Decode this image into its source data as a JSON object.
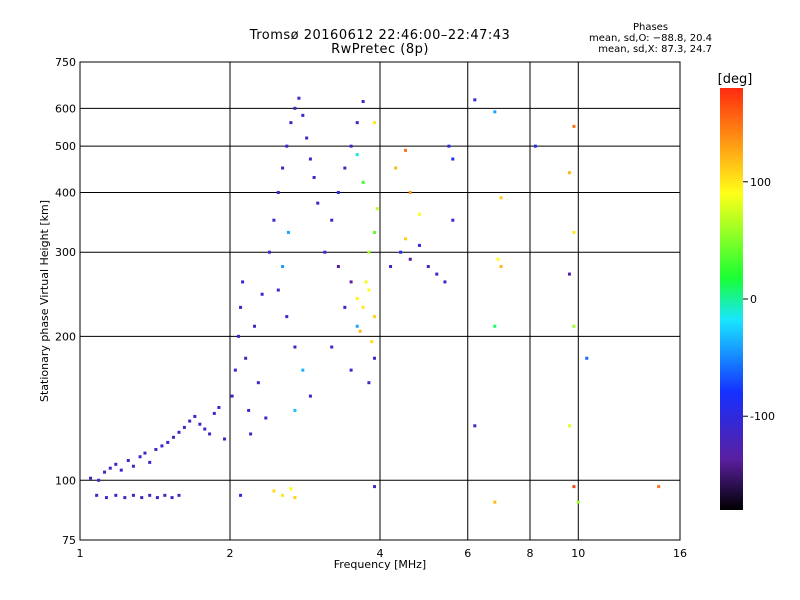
{
  "title_line1": "Tromsø 20160612 22:46:00–22:47:43",
  "title_line2": "RwPretec (8p)",
  "stats": {
    "header": "Phases",
    "line_o": "mean, sd,O: −88.8, 20.4",
    "line_x": "mean, sd,X:  87.3, 24.7"
  },
  "chart_data": {
    "type": "scatter",
    "title": "Tromsø 20160612 22:46:00–22:47:43",
    "subtitle": "RwPretec (8p)",
    "xlabel": "Frequency [MHz]",
    "ylabel": "Stationary phase Virtual Height [km]",
    "xscale": "log",
    "yscale": "log",
    "xlim": [
      1,
      16
    ],
    "ylim": [
      75,
      750
    ],
    "x_ticks": [
      1,
      2,
      4,
      6,
      8,
      10,
      16
    ],
    "x_tick_labels": [
      "1",
      "2",
      "4",
      "6",
      "8",
      "10",
      "16"
    ],
    "y_ticks": [
      75,
      100,
      200,
      300,
      400,
      500,
      600,
      750
    ],
    "y_tick_labels": [
      "75",
      "100",
      "200",
      "300",
      "400",
      "500",
      "600",
      "750"
    ],
    "grid": true,
    "colorbar": {
      "label": "[deg]",
      "range": [
        -180,
        180
      ],
      "ticks": [
        -100,
        0,
        100
      ],
      "tick_labels": [
        "-100",
        "0",
        "100"
      ],
      "colors": [
        "#000000",
        "#5a1fa0",
        "#1530ff",
        "#19e6ff",
        "#19ff33",
        "#ffff19",
        "#ff2a0f"
      ]
    },
    "series": [
      {
        "points": [
          [
            1.05,
            101,
            -120
          ],
          [
            1.09,
            100,
            -115
          ],
          [
            1.12,
            104,
            -118
          ],
          [
            1.15,
            106,
            -110
          ],
          [
            1.18,
            108,
            -120
          ],
          [
            1.21,
            105,
            -108
          ],
          [
            1.25,
            110,
            -112
          ],
          [
            1.28,
            107,
            -118
          ],
          [
            1.32,
            112,
            -105
          ],
          [
            1.35,
            114,
            -115
          ],
          [
            1.38,
            109,
            -110
          ],
          [
            1.42,
            116,
            -120
          ],
          [
            1.46,
            118,
            -108
          ],
          [
            1.5,
            120,
            -112
          ],
          [
            1.54,
            123,
            -115
          ],
          [
            1.58,
            126,
            -105
          ],
          [
            1.62,
            129,
            -118
          ],
          [
            1.66,
            133,
            -110
          ],
          [
            1.7,
            136,
            -112
          ],
          [
            1.74,
            131,
            -120
          ],
          [
            1.78,
            128,
            -108
          ],
          [
            1.82,
            125,
            -115
          ],
          [
            1.86,
            138,
            -110
          ],
          [
            1.9,
            142,
            -105
          ],
          [
            1.95,
            122,
            -112
          ],
          [
            1.08,
            93,
            -112
          ],
          [
            1.13,
            92,
            -118
          ],
          [
            1.18,
            93,
            -108
          ],
          [
            1.23,
            92,
            -115
          ],
          [
            1.28,
            93,
            -110
          ],
          [
            1.33,
            92,
            -120
          ],
          [
            1.38,
            93,
            -105
          ],
          [
            1.43,
            92,
            -112
          ],
          [
            1.48,
            93,
            -118
          ],
          [
            1.53,
            92,
            -110
          ],
          [
            1.58,
            93,
            -115
          ],
          [
            2.02,
            150,
            -110
          ],
          [
            2.05,
            170,
            -108
          ],
          [
            2.08,
            200,
            -112
          ],
          [
            2.1,
            230,
            -115
          ],
          [
            2.12,
            260,
            -105
          ],
          [
            2.15,
            180,
            -118
          ],
          [
            2.18,
            140,
            -110
          ],
          [
            2.2,
            125,
            -112
          ],
          [
            2.24,
            210,
            -115
          ],
          [
            2.28,
            160,
            -108
          ],
          [
            2.32,
            245,
            -112
          ],
          [
            2.36,
            135,
            -118
          ],
          [
            2.4,
            300,
            -110
          ],
          [
            2.45,
            350,
            -105
          ],
          [
            2.5,
            400,
            -112
          ],
          [
            2.55,
            450,
            -115
          ],
          [
            2.6,
            500,
            -108
          ],
          [
            2.65,
            560,
            -110
          ],
          [
            2.7,
            600,
            -118
          ],
          [
            2.75,
            630,
            -112
          ],
          [
            2.8,
            580,
            -105
          ],
          [
            2.85,
            520,
            -110
          ],
          [
            2.9,
            470,
            -108
          ],
          [
            2.95,
            430,
            -115
          ],
          [
            3.0,
            380,
            -112
          ],
          [
            2.5,
            250,
            -110
          ],
          [
            2.6,
            220,
            -108
          ],
          [
            2.7,
            190,
            -112
          ],
          [
            2.8,
            170,
            -35
          ],
          [
            2.9,
            150,
            -110
          ],
          [
            2.55,
            280,
            -45
          ],
          [
            2.62,
            330,
            -40
          ],
          [
            2.7,
            140,
            -30
          ],
          [
            3.1,
            300,
            -105
          ],
          [
            3.2,
            350,
            -110
          ],
          [
            3.3,
            400,
            -95
          ],
          [
            3.4,
            450,
            -120
          ],
          [
            3.5,
            500,
            -108
          ],
          [
            3.6,
            560,
            -115
          ],
          [
            3.7,
            620,
            -112
          ],
          [
            3.3,
            280,
            -140
          ],
          [
            3.5,
            260,
            -135
          ],
          [
            3.4,
            230,
            -110
          ],
          [
            3.6,
            210,
            -40
          ],
          [
            3.2,
            190,
            -112
          ],
          [
            3.5,
            170,
            -108
          ],
          [
            3.8,
            160,
            -118
          ],
          [
            3.9,
            180,
            -110
          ],
          [
            3.6,
            240,
            95
          ],
          [
            3.7,
            230,
            100
          ],
          [
            3.8,
            250,
            90
          ],
          [
            3.9,
            220,
            110
          ],
          [
            3.75,
            260,
            85
          ],
          [
            3.65,
            205,
            120
          ],
          [
            3.85,
            195,
            105
          ],
          [
            3.8,
            300,
            60
          ],
          [
            3.9,
            330,
            40
          ],
          [
            3.95,
            370,
            70
          ],
          [
            3.7,
            420,
            30
          ],
          [
            3.6,
            480,
            -10
          ],
          [
            3.9,
            560,
            100
          ],
          [
            4.2,
            280,
            -110
          ],
          [
            4.4,
            300,
            -95
          ],
          [
            4.6,
            290,
            -140
          ],
          [
            4.8,
            310,
            -105
          ],
          [
            5.0,
            280,
            -120
          ],
          [
            5.2,
            270,
            -110
          ],
          [
            4.5,
            320,
            110
          ],
          [
            4.8,
            360,
            90
          ],
          [
            4.6,
            400,
            135
          ],
          [
            4.3,
            450,
            120
          ],
          [
            4.5,
            490,
            150
          ],
          [
            5.5,
            500,
            -100
          ],
          [
            5.6,
            470,
            -80
          ],
          [
            5.6,
            350,
            -105
          ],
          [
            5.4,
            260,
            -110
          ],
          [
            6.2,
            625,
            -105
          ],
          [
            6.8,
            590,
            -40
          ],
          [
            7.0,
            390,
            110
          ],
          [
            6.9,
            290,
            90
          ],
          [
            6.8,
            210,
            10
          ],
          [
            7.0,
            280,
            120
          ],
          [
            6.2,
            130,
            -110
          ],
          [
            8.2,
            500,
            -100
          ],
          [
            9.8,
            550,
            150
          ],
          [
            9.6,
            440,
            120
          ],
          [
            9.8,
            330,
            100
          ],
          [
            9.8,
            210,
            60
          ],
          [
            9.6,
            270,
            -130
          ],
          [
            10.4,
            180,
            -60
          ],
          [
            9.6,
            130,
            80
          ],
          [
            9.8,
            97,
            170
          ],
          [
            14.5,
            97,
            150
          ],
          [
            2.45,
            95,
            105
          ],
          [
            2.55,
            93,
            100
          ],
          [
            2.65,
            96,
            90
          ],
          [
            2.7,
            92,
            110
          ],
          [
            2.1,
            93,
            -100
          ],
          [
            3.9,
            97,
            -110
          ],
          [
            6.8,
            90,
            120
          ],
          [
            10.0,
            90,
            60
          ]
        ]
      }
    ]
  }
}
